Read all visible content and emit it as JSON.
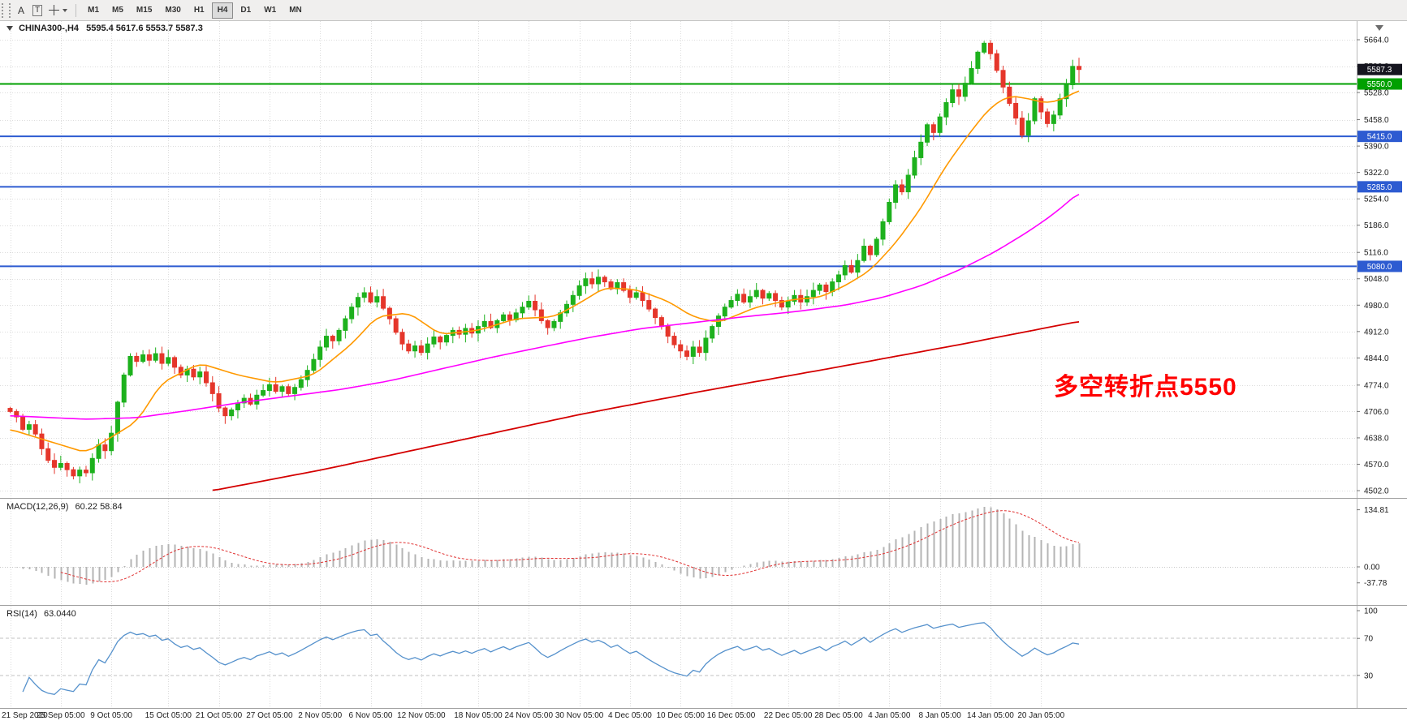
{
  "toolbar": {
    "tool_a": "A",
    "tool_t": "T",
    "icons": [
      "toolbar-drag-handle",
      "crosshair-icon",
      "chevron-down-icon"
    ],
    "timeframes": [
      "M1",
      "M5",
      "M15",
      "M30",
      "H1",
      "H4",
      "D1",
      "W1",
      "MN"
    ],
    "active_timeframe": "H4"
  },
  "chart": {
    "title_symbol": "CHINA300-,H4",
    "title_ohlc": "5595.4 5617.6 5553.7 5587.3",
    "annotation": {
      "text": "多空转折点5550",
      "color": "#ff0000"
    }
  },
  "colors": {
    "up": "#1db11d",
    "down": "#e5362b",
    "ma_fast": "#ff9900",
    "ma_mid": "#ff00ff",
    "ma_slow": "#d40000",
    "level_blue": "#2d5bd1",
    "level_green": "#00a000",
    "grid": "#dcdcdc",
    "macd_bar": "#b4b4b4",
    "macd_signal": "#e03030",
    "rsi_line": "#5591cc",
    "badge_current_bg": "#15151f",
    "axis_text": "#1b1b1b"
  },
  "chart_data": {
    "type": "candlestick",
    "symbol": "CHINA300-",
    "timeframe": "H4",
    "ohlc_current": {
      "open": 5595.4,
      "high": 5617.6,
      "low": 5553.7,
      "close": 5587.3
    },
    "ylim": [
      4502,
      5664
    ],
    "closes": [
      4706,
      4692,
      4660,
      4672,
      4648,
      4610,
      4580,
      4562,
      4572,
      4556,
      4540,
      4555,
      4548,
      4585,
      4620,
      4605,
      4650,
      4730,
      4800,
      4848,
      4835,
      4852,
      4838,
      4855,
      4830,
      4845,
      4820,
      4800,
      4815,
      4795,
      4808,
      4780,
      4752,
      4715,
      4695,
      4710,
      4728,
      4740,
      4725,
      4748,
      4760,
      4775,
      4758,
      4770,
      4752,
      4768,
      4788,
      4812,
      4840,
      4872,
      4900,
      4888,
      4915,
      4945,
      4975,
      5000,
      5012,
      4988,
      5002,
      4972,
      4945,
      4910,
      4880,
      4862,
      4875,
      4858,
      4880,
      4898,
      4885,
      4902,
      4915,
      4905,
      4920,
      4908,
      4925,
      4938,
      4922,
      4940,
      4955,
      4942,
      4960,
      4975,
      4990,
      4968,
      4940,
      4922,
      4938,
      4960,
      4982,
      5005,
      5030,
      5048,
      5035,
      5052,
      5040,
      5022,
      5038,
      5018,
      5000,
      5012,
      4992,
      4970,
      4948,
      4925,
      4900,
      4878,
      4862,
      4848,
      4872,
      4858,
      4895,
      4925,
      4952,
      4975,
      4992,
      5008,
      4988,
      5002,
      5018,
      4998,
      5010,
      4992,
      4975,
      4990,
      5005,
      4988,
      5002,
      5018,
      5032,
      5015,
      5040,
      5058,
      5082,
      5065,
      5095,
      5132,
      5110,
      5150,
      5195,
      5245,
      5290,
      5272,
      5315,
      5360,
      5400,
      5445,
      5425,
      5465,
      5502,
      5535,
      5518,
      5552,
      5590,
      5632,
      5655,
      5628,
      5585,
      5542,
      5500,
      5462,
      5418,
      5455,
      5512,
      5478,
      5448,
      5470,
      5512,
      5548,
      5595.4,
      5587.3
    ],
    "price_grid_labels": [
      5664.0,
      5596.0,
      5528.0,
      5458.0,
      5390.0,
      5322.0,
      5254.0,
      5186.0,
      5116.0,
      5048.0,
      4980.0,
      4912.0,
      4844.0,
      4774.0,
      4706.0,
      4638.0,
      4570.0,
      4502.0
    ],
    "current_price": {
      "value": 5587.3,
      "label": "5587.3"
    },
    "levels": [
      {
        "price": 5550.0,
        "label": "5550.0",
        "color": "#00a000"
      },
      {
        "price": 5415.0,
        "label": "5415.0",
        "color": "#2d5bd1"
      },
      {
        "price": 5285.0,
        "label": "5285.0",
        "color": "#2d5bd1"
      },
      {
        "price": 5080.0,
        "label": "5080.0",
        "color": "#2d5bd1"
      }
    ],
    "time_labels": [
      {
        "label": "21 Sep 2020",
        "idx": 0
      },
      {
        "label": "25 Sep 05:00",
        "idx": 8
      },
      {
        "label": "9 Oct 05:00",
        "idx": 16
      },
      {
        "label": "15 Oct 05:00",
        "idx": 25
      },
      {
        "label": "21 Oct 05:00",
        "idx": 33
      },
      {
        "label": "27 Oct 05:00",
        "idx": 41
      },
      {
        "label": "2 Nov 05:00",
        "idx": 49
      },
      {
        "label": "6 Nov 05:00",
        "idx": 57
      },
      {
        "label": "12 Nov 05:00",
        "idx": 65
      },
      {
        "label": "18 Nov 05:00",
        "idx": 74
      },
      {
        "label": "24 Nov 05:00",
        "idx": 82
      },
      {
        "label": "30 Nov 05:00",
        "idx": 90
      },
      {
        "label": "4 Dec 05:00",
        "idx": 98
      },
      {
        "label": "10 Dec 05:00",
        "idx": 106
      },
      {
        "label": "16 Dec 05:00",
        "idx": 114
      },
      {
        "label": "22 Dec 05:00",
        "idx": 123
      },
      {
        "label": "28 Dec 05:00",
        "idx": 131
      },
      {
        "label": "4 Jan 05:00",
        "idx": 139
      },
      {
        "label": "8 Jan 05:00",
        "idx": 147
      },
      {
        "label": "14 Jan 05:00",
        "idx": 155
      },
      {
        "label": "20 Jan 05:00",
        "idx": 163
      }
    ],
    "ma_lines": [
      {
        "name": "ma-fast-orange",
        "color": "#ff9900",
        "width": 1.6,
        "anchors": [
          [
            0,
            4660
          ],
          [
            12,
            4600
          ],
          [
            20,
            4680
          ],
          [
            24,
            4780
          ],
          [
            30,
            4830
          ],
          [
            36,
            4800
          ],
          [
            42,
            4780
          ],
          [
            48,
            4800
          ],
          [
            54,
            4880
          ],
          [
            58,
            4950
          ],
          [
            63,
            4960
          ],
          [
            68,
            4905
          ],
          [
            74,
            4915
          ],
          [
            80,
            4945
          ],
          [
            86,
            4950
          ],
          [
            90,
            4985
          ],
          [
            94,
            5025
          ],
          [
            99,
            5020
          ],
          [
            104,
            4990
          ],
          [
            108,
            4950
          ],
          [
            112,
            4935
          ],
          [
            118,
            4975
          ],
          [
            124,
            4995
          ],
          [
            128,
            5000
          ],
          [
            132,
            5030
          ],
          [
            136,
            5070
          ],
          [
            140,
            5140
          ],
          [
            144,
            5230
          ],
          [
            148,
            5340
          ],
          [
            152,
            5430
          ],
          [
            155,
            5490
          ],
          [
            158,
            5520
          ],
          [
            161,
            5512
          ],
          [
            164,
            5500
          ],
          [
            167,
            5515
          ],
          [
            169,
            5535
          ]
        ]
      },
      {
        "name": "ma-mid-magenta",
        "color": "#ff00ff",
        "width": 1.6,
        "anchors": [
          [
            0,
            4695
          ],
          [
            12,
            4686
          ],
          [
            20,
            4690
          ],
          [
            28,
            4708
          ],
          [
            36,
            4728
          ],
          [
            44,
            4745
          ],
          [
            52,
            4762
          ],
          [
            60,
            4785
          ],
          [
            68,
            4815
          ],
          [
            76,
            4845
          ],
          [
            84,
            4872
          ],
          [
            92,
            4898
          ],
          [
            100,
            4920
          ],
          [
            108,
            4935
          ],
          [
            116,
            4950
          ],
          [
            124,
            4963
          ],
          [
            132,
            4980
          ],
          [
            138,
            5000
          ],
          [
            144,
            5030
          ],
          [
            150,
            5070
          ],
          [
            156,
            5120
          ],
          [
            161,
            5170
          ],
          [
            165,
            5215
          ],
          [
            169,
            5270
          ]
        ]
      },
      {
        "name": "ma-slow-red",
        "color": "#d40000",
        "width": 1.8,
        "anchors": [
          [
            32,
            4502
          ],
          [
            50,
            4558
          ],
          [
            70,
            4628
          ],
          [
            90,
            4698
          ],
          [
            110,
            4760
          ],
          [
            130,
            4818
          ],
          [
            150,
            4878
          ],
          [
            169,
            4938
          ]
        ]
      }
    ],
    "indicators": {
      "macd": {
        "label": "MACD(12,26,9)",
        "values_text": "60.22 58.84",
        "params": [
          12,
          26,
          9
        ],
        "axis_labels": [
          {
            "v": 134.81,
            "text": "134.81"
          },
          {
            "v": 0,
            "text": "0.00"
          },
          {
            "v": -37.78,
            "text": "-37.78"
          }
        ]
      },
      "rsi": {
        "label": "RSI(14)",
        "value_text": "63.0440",
        "period": 14,
        "levels": [
          70,
          30
        ],
        "axis_labels": [
          {
            "v": 100,
            "text": "100"
          },
          {
            "v": 70,
            "text": "70"
          },
          {
            "v": 30,
            "text": "30"
          }
        ]
      }
    }
  }
}
